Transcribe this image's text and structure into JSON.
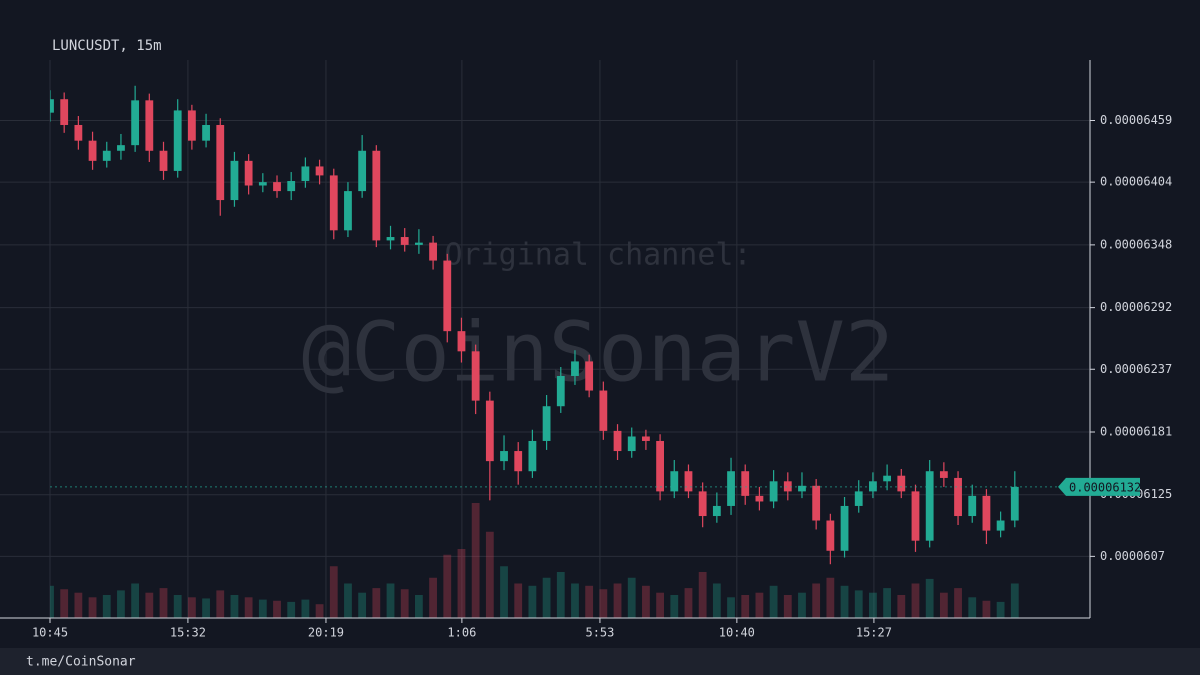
{
  "chart_data": {
    "type": "candlestick",
    "title": "LUNCUSDT, 15m",
    "watermark": [
      "Original channel:",
      "@CoinSonarV2"
    ],
    "footer": "t.me/CoinSonar",
    "up_color": "#22ab94",
    "down_color": "#e0475e",
    "grid": true,
    "xlim": [
      0,
      73.3
    ],
    "xticks": [
      {
        "value": 0,
        "label": "10:45"
      },
      {
        "value": 9.72,
        "label": "15:32"
      },
      {
        "value": 19.45,
        "label": "20:19"
      },
      {
        "value": 29.03,
        "label": "1:06"
      },
      {
        "value": 38.76,
        "label": "5:53"
      },
      {
        "value": 48.41,
        "label": "10:40"
      },
      {
        "value": 58.07,
        "label": "15:27"
      }
    ],
    "ylim": [
      6.015e-05,
      6.513e-05
    ],
    "yticks": [
      6.07e-05,
      6.125e-05,
      6.181e-05,
      6.237e-05,
      6.292e-05,
      6.348e-05,
      6.404e-05,
      6.459e-05
    ],
    "last_price": 6.132e-05,
    "open": [
      6.466e-05,
      6.478e-05,
      6.455e-05,
      6.441e-05,
      6.423e-05,
      6.432e-05,
      6.437e-05,
      6.477e-05,
      6.432e-05,
      6.414e-05,
      6.468e-05,
      6.441e-05,
      6.455e-05,
      6.388e-05,
      6.423e-05,
      6.401e-05,
      6.404e-05,
      6.396e-05,
      6.405e-05,
      6.418e-05,
      6.41e-05,
      6.361e-05,
      6.396e-05,
      6.432e-05,
      6.352e-05,
      6.355e-05,
      6.348e-05,
      6.35e-05,
      6.334e-05,
      6.271e-05,
      6.253e-05,
      6.209e-05,
      6.155e-05,
      6.164e-05,
      6.146e-05,
      6.173e-05,
      6.204e-05,
      6.231e-05,
      6.244e-05,
      6.218e-05,
      6.182e-05,
      6.164e-05,
      6.177e-05,
      6.173e-05,
      6.128e-05,
      6.146e-05,
      6.128e-05,
      6.106e-05,
      6.115e-05,
      6.146e-05,
      6.124e-05,
      6.119e-05,
      6.137e-05,
      6.128e-05,
      6.133e-05,
      6.102e-05,
      6.075e-05,
      6.115e-05,
      6.128e-05,
      6.137e-05,
      6.142e-05,
      6.128e-05,
      6.084e-05,
      6.146e-05,
      6.14e-05,
      6.106e-05,
      6.124e-05,
      6.093e-05,
      6.102e-05
    ],
    "high": [
      6.486e-05,
      6.484e-05,
      6.463e-05,
      6.449e-05,
      6.44e-05,
      6.447e-05,
      6.49e-05,
      6.483e-05,
      6.44e-05,
      6.478e-05,
      6.473e-05,
      6.465e-05,
      6.461e-05,
      6.431e-05,
      6.429e-05,
      6.412e-05,
      6.41e-05,
      6.413e-05,
      6.426e-05,
      6.424e-05,
      6.416e-05,
      6.404e-05,
      6.446e-05,
      6.437e-05,
      6.365e-05,
      6.363e-05,
      6.362e-05,
      6.356e-05,
      6.34e-05,
      6.283e-05,
      6.259e-05,
      6.217e-05,
      6.178e-05,
      6.172e-05,
      6.183e-05,
      6.214e-05,
      6.239e-05,
      6.254e-05,
      6.25e-05,
      6.226e-05,
      6.188e-05,
      6.185e-05,
      6.183e-05,
      6.179e-05,
      6.156e-05,
      6.152e-05,
      6.136e-05,
      6.127e-05,
      6.158e-05,
      6.152e-05,
      6.132e-05,
      6.147e-05,
      6.145e-05,
      6.145e-05,
      6.139e-05,
      6.108e-05,
      6.123e-05,
      6.138e-05,
      6.145e-05,
      6.152e-05,
      6.148e-05,
      6.134e-05,
      6.156e-05,
      6.154e-05,
      6.146e-05,
      6.134e-05,
      6.13e-05,
      6.11e-05,
      6.146e-05
    ],
    "low": [
      6.458e-05,
      6.448e-05,
      6.433e-05,
      6.415e-05,
      6.417e-05,
      6.424e-05,
      6.431e-05,
      6.422e-05,
      6.406e-05,
      6.408e-05,
      6.433e-05,
      6.435e-05,
      6.374e-05,
      6.382e-05,
      6.393e-05,
      6.395e-05,
      6.39e-05,
      6.388e-05,
      6.399e-05,
      6.402e-05,
      6.353e-05,
      6.355e-05,
      6.39e-05,
      6.346e-05,
      6.344e-05,
      6.342e-05,
      6.34e-05,
      6.326e-05,
      6.261e-05,
      6.243e-05,
      6.197e-05,
      6.12e-05,
      6.147e-05,
      6.134e-05,
      6.14e-05,
      6.165e-05,
      6.198e-05,
      6.223e-05,
      6.212e-05,
      6.174e-05,
      6.156e-05,
      6.158e-05,
      6.165e-05,
      6.12e-05,
      6.122e-05,
      6.122e-05,
      6.096e-05,
      6.1e-05,
      6.107e-05,
      6.116e-05,
      6.111e-05,
      6.113e-05,
      6.12e-05,
      6.122e-05,
      6.094e-05,
      6.063e-05,
      6.069e-05,
      6.109e-05,
      6.122e-05,
      6.129e-05,
      6.122e-05,
      6.074e-05,
      6.078e-05,
      6.132e-05,
      6.098e-05,
      6.1e-05,
      6.081e-05,
      6.087e-05,
      6.096e-05
    ],
    "close": [
      6.478e-05,
      6.455e-05,
      6.441e-05,
      6.423e-05,
      6.432e-05,
      6.437e-05,
      6.477e-05,
      6.432e-05,
      6.414e-05,
      6.468e-05,
      6.441e-05,
      6.455e-05,
      6.388e-05,
      6.423e-05,
      6.401e-05,
      6.404e-05,
      6.396e-05,
      6.405e-05,
      6.418e-05,
      6.41e-05,
      6.361e-05,
      6.396e-05,
      6.432e-05,
      6.352e-05,
      6.355e-05,
      6.348e-05,
      6.35e-05,
      6.334e-05,
      6.271e-05,
      6.253e-05,
      6.209e-05,
      6.155e-05,
      6.164e-05,
      6.146e-05,
      6.173e-05,
      6.204e-05,
      6.231e-05,
      6.244e-05,
      6.218e-05,
      6.182e-05,
      6.164e-05,
      6.177e-05,
      6.173e-05,
      6.128e-05,
      6.146e-05,
      6.128e-05,
      6.106e-05,
      6.115e-05,
      6.146e-05,
      6.124e-05,
      6.119e-05,
      6.137e-05,
      6.128e-05,
      6.133e-05,
      6.102e-05,
      6.075e-05,
      6.115e-05,
      6.128e-05,
      6.137e-05,
      6.142e-05,
      6.128e-05,
      6.084e-05,
      6.146e-05,
      6.14e-05,
      6.106e-05,
      6.124e-05,
      6.093e-05,
      6.102e-05,
      6.132e-05
    ],
    "volume": [
      28,
      25,
      22,
      18,
      20,
      24,
      30,
      22,
      26,
      20,
      18,
      17,
      24,
      20,
      18,
      16,
      15,
      14,
      16,
      12,
      45,
      30,
      22,
      26,
      30,
      25,
      20,
      35,
      55,
      60,
      100,
      75,
      45,
      30,
      28,
      35,
      40,
      30,
      28,
      25,
      30,
      35,
      28,
      22,
      20,
      26,
      40,
      30,
      18,
      20,
      22,
      28,
      20,
      22,
      30,
      35,
      28,
      24,
      22,
      26,
      20,
      30,
      34,
      22,
      26,
      18,
      15,
      14,
      30
    ]
  }
}
